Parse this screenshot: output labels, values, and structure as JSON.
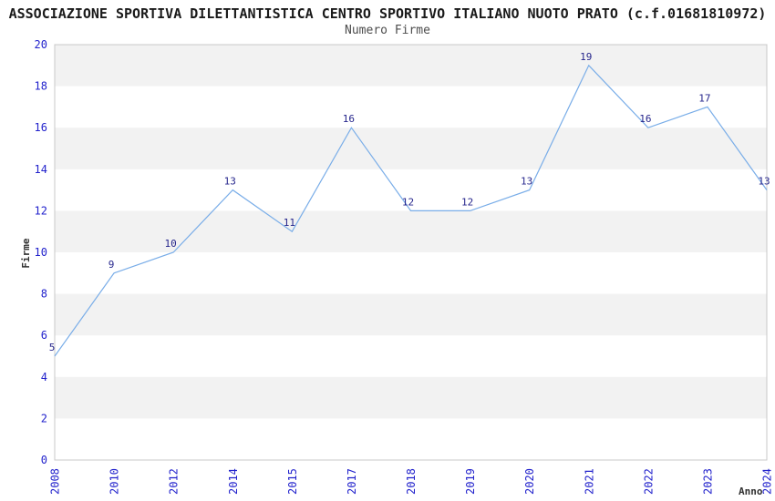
{
  "chart": {
    "title": "ASSOCIAZIONE SPORTIVA DILETTANTISTICA CENTRO SPORTIVO ITALIANO NUOTO PRATO (c.f.01681810972)",
    "subtitle": "Numero Firme"
  },
  "chart_data": {
    "type": "line",
    "title": "ASSOCIAZIONE SPORTIVA DILETTANTISTICA CENTRO SPORTIVO ITALIANO NUOTO PRATO (c.f.01681810972)",
    "subtitle": "Numero Firme",
    "xlabel": "Anno",
    "ylabel": "Firme",
    "categories": [
      "2008",
      "2010",
      "2012",
      "2014",
      "2015",
      "2017",
      "2018",
      "2019",
      "2020",
      "2021",
      "2022",
      "2023",
      "2024"
    ],
    "values": [
      5,
      9,
      10,
      13,
      11,
      16,
      12,
      12,
      13,
      19,
      16,
      17,
      13
    ],
    "ylim": [
      0,
      20
    ],
    "ytick_step": 2,
    "yticks": [
      0,
      2,
      4,
      6,
      8,
      10,
      12,
      14,
      16,
      18,
      20
    ],
    "grid": "alternating-horizontal-bands",
    "legend_position": "none",
    "data_labels_visible": true,
    "colors": {
      "line": "#79ADE8",
      "data_label": "#26268C",
      "tick_label": "#2222CC",
      "band_fill": "#F2F2F2",
      "plot_border": "#C8C8C8",
      "title": "#1A1A1A",
      "subtitle": "#4D4D4D",
      "axis_title": "#303030",
      "background": "#FFFFFF"
    }
  }
}
